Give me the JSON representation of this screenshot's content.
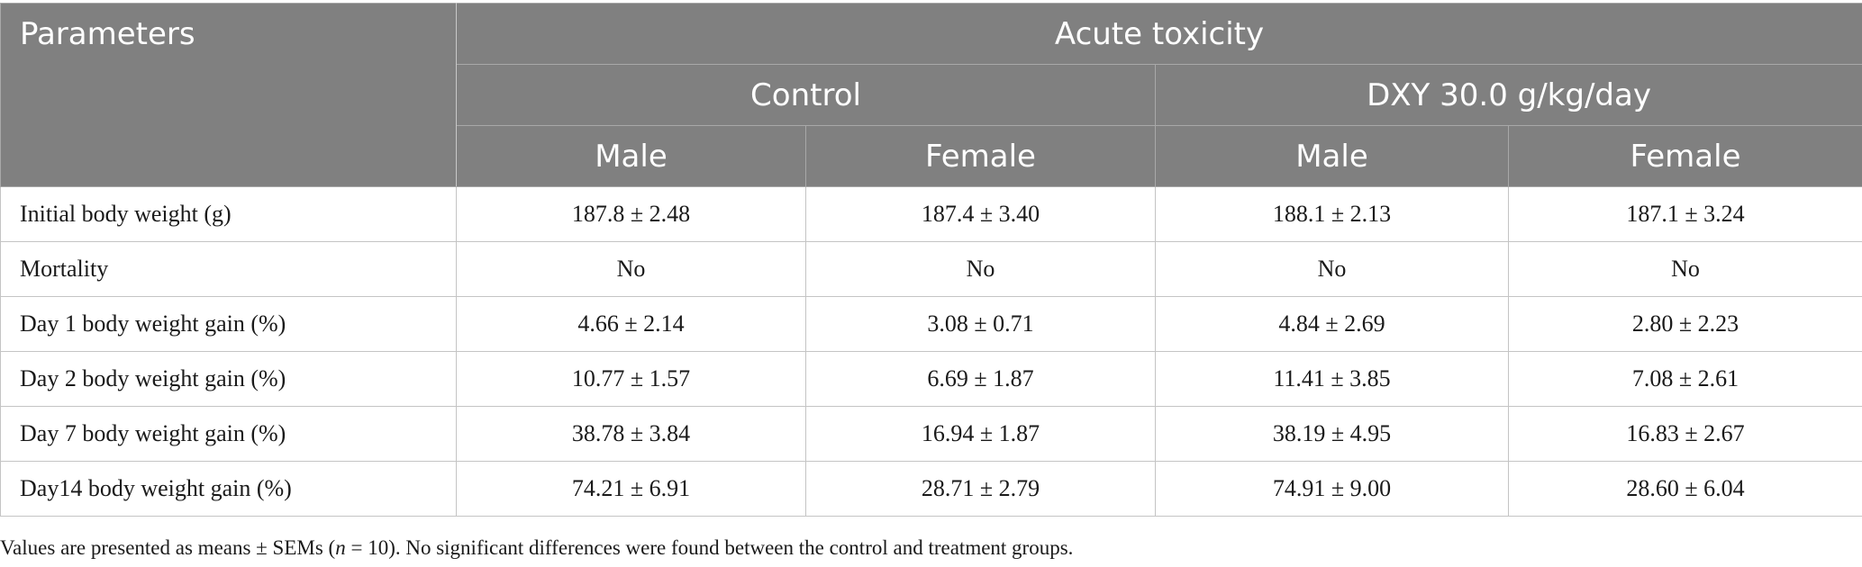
{
  "table": {
    "header": {
      "parameters_label": "Parameters",
      "study_label": "Acute toxicity",
      "groups": [
        "Control",
        "DXY 30.0 g/kg/day"
      ],
      "sexes": [
        "Male",
        "Female",
        "Male",
        "Female"
      ]
    },
    "rows": [
      {
        "param": "Initial body weight (g)",
        "values": [
          "187.8 ± 2.48",
          "187.4 ± 3.40",
          "188.1 ± 2.13",
          "187.1 ± 3.24"
        ]
      },
      {
        "param": "Mortality",
        "values": [
          "No",
          "No",
          "No",
          "No"
        ]
      },
      {
        "param": "Day 1 body weight gain (%)",
        "values": [
          "4.66 ± 2.14",
          "3.08 ± 0.71",
          "4.84 ± 2.69",
          "2.80 ± 2.23"
        ]
      },
      {
        "param": "Day 2 body weight gain (%)",
        "values": [
          "10.77 ± 1.57",
          "6.69 ± 1.87",
          "11.41 ± 3.85",
          "7.08 ± 2.61"
        ]
      },
      {
        "param": "Day 7 body weight gain (%)",
        "values": [
          "38.78 ± 3.84",
          "16.94 ± 1.87",
          "38.19 ± 4.95",
          "16.83 ± 2.67"
        ]
      },
      {
        "param": "Day14 body weight gain (%)",
        "values": [
          "74.21 ± 6.91",
          "28.71 ± 2.79",
          "74.91 ± 9.00",
          "28.60 ± 6.04"
        ]
      }
    ]
  },
  "footnote": {
    "prefix": "Values are presented as means ± SEMs (",
    "n_symbol": "n",
    "suffix": " = 10). No significant differences were found between the control and treatment groups."
  }
}
